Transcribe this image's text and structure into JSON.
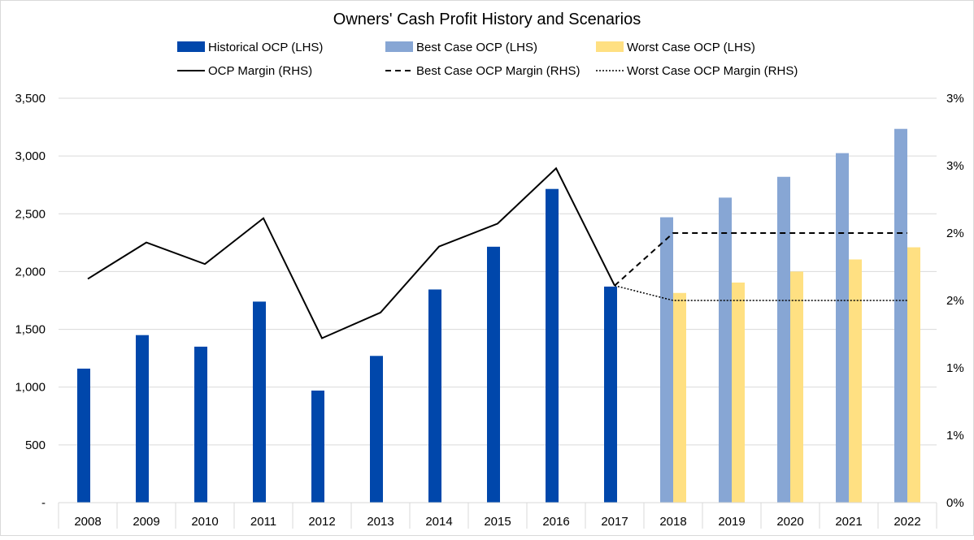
{
  "chart_data": {
    "type": "bar",
    "title": "Owners' Cash Profit History and Scenarios",
    "categories": [
      "2008",
      "2009",
      "2010",
      "2011",
      "2012",
      "2013",
      "2014",
      "2015",
      "2016",
      "2017",
      "2018",
      "2019",
      "2020",
      "2021",
      "2022"
    ],
    "left_axis": {
      "range": [
        0,
        3500
      ],
      "ticks": [
        0,
        500,
        1000,
        1500,
        2000,
        2500,
        3000,
        3500
      ],
      "tick_labels": [
        "-",
        "500",
        "1,000",
        "1,500",
        "2,000",
        "2,500",
        "3,000",
        "3,500"
      ]
    },
    "right_axis": {
      "range": [
        0,
        0.03
      ],
      "ticks": [
        0,
        0.005,
        0.01,
        0.015,
        0.02,
        0.025,
        0.03
      ],
      "tick_labels": [
        "0%",
        "1%",
        "1%",
        "2%",
        "2%",
        "3%",
        "3%"
      ]
    },
    "grid": true,
    "legend_position": "top",
    "series": [
      {
        "name": "Historical OCP (LHS)",
        "kind": "bar",
        "axis": "left",
        "color": "#0047AB",
        "values": [
          1160,
          1450,
          1350,
          1740,
          970,
          1270,
          1845,
          2215,
          2715,
          1870,
          null,
          null,
          null,
          null,
          null
        ]
      },
      {
        "name": "Best Case OCP (LHS)",
        "kind": "bar",
        "axis": "left",
        "color": "#87A6D4",
        "values": [
          null,
          null,
          null,
          null,
          null,
          null,
          null,
          null,
          null,
          null,
          2470,
          2640,
          2820,
          3025,
          3235
        ]
      },
      {
        "name": "Worst Case OCP (LHS)",
        "kind": "bar",
        "axis": "left",
        "color": "#FFE082",
        "values": [
          null,
          null,
          null,
          null,
          null,
          null,
          null,
          null,
          null,
          null,
          1815,
          1905,
          2000,
          2105,
          2210
        ]
      },
      {
        "name": "OCP Margin (RHS)",
        "kind": "line",
        "axis": "right",
        "color": "#000000",
        "dash": "solid",
        "values": [
          0.0166,
          0.0193,
          0.0177,
          0.0211,
          0.0122,
          0.0141,
          0.019,
          0.0207,
          0.0248,
          0.0161,
          null,
          null,
          null,
          null,
          null
        ]
      },
      {
        "name": "Best Case OCP Margin (RHS)",
        "kind": "line",
        "axis": "right",
        "color": "#000000",
        "dash": "dashed",
        "values": [
          null,
          null,
          null,
          null,
          null,
          null,
          null,
          null,
          null,
          0.0161,
          0.02,
          0.02,
          0.02,
          0.02,
          0.02
        ]
      },
      {
        "name": "Worst Case OCP Margin (RHS)",
        "kind": "line",
        "axis": "right",
        "color": "#000000",
        "dash": "dotted",
        "values": [
          null,
          null,
          null,
          null,
          null,
          null,
          null,
          null,
          null,
          0.0161,
          0.015,
          0.015,
          0.015,
          0.015,
          0.015
        ]
      }
    ]
  }
}
